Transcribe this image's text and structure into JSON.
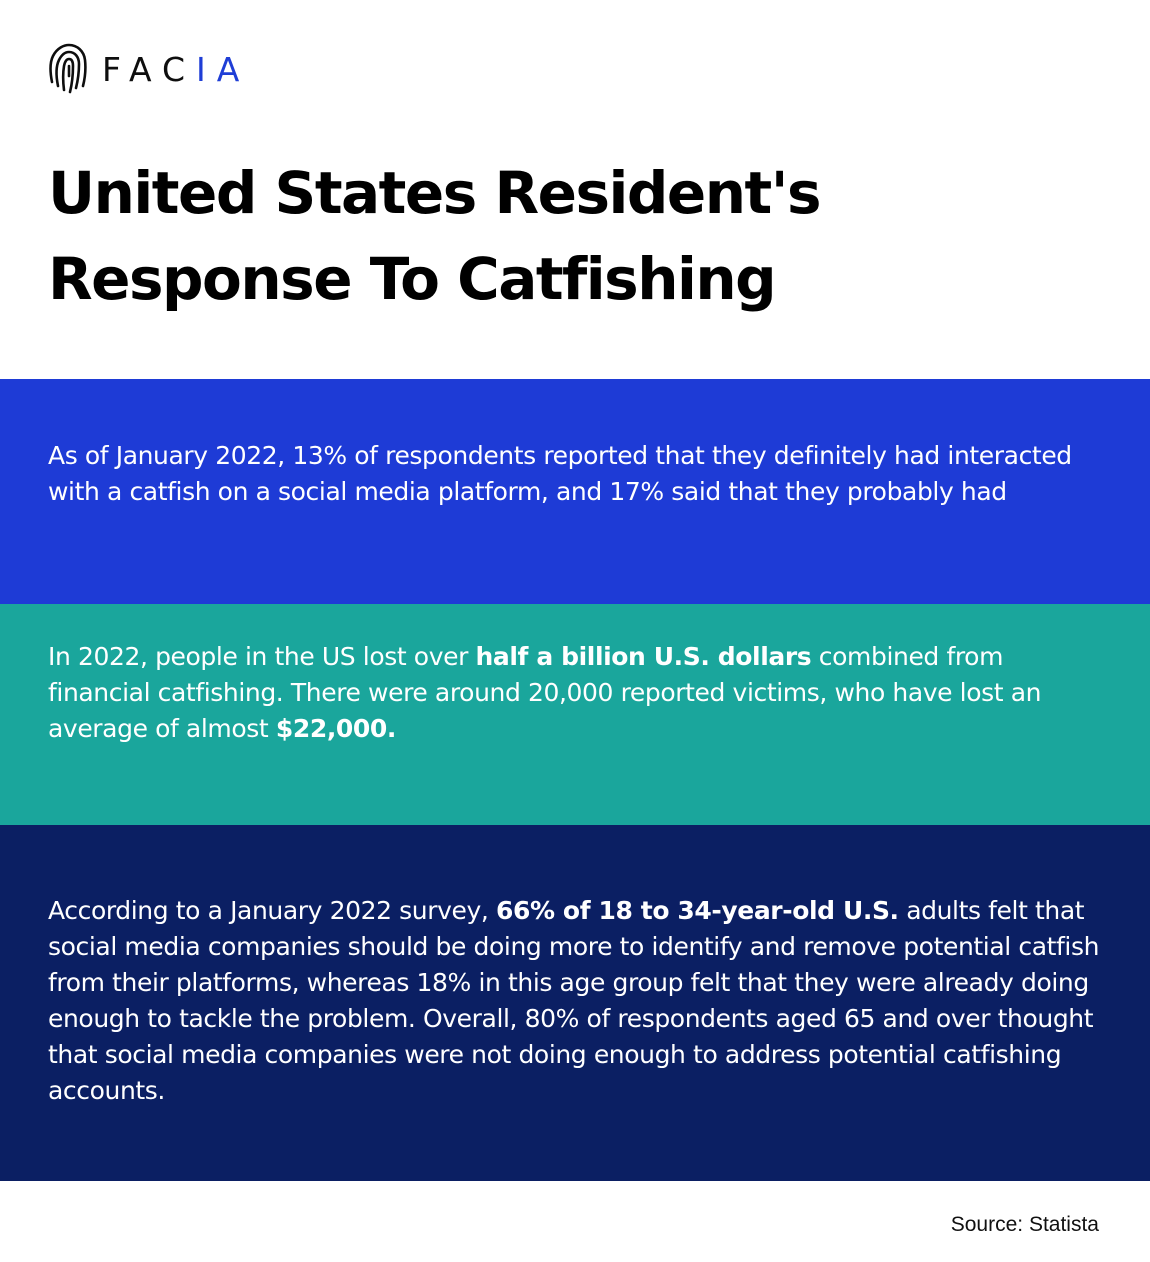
{
  "brand": {
    "logo_text_dark": "FAC",
    "logo_text_accent": "IA",
    "logo_icon": "fingerprint-icon",
    "accent_color": "#1f3ed6"
  },
  "title": {
    "line1": "United States Resident's",
    "line2": "Response To Catfishing"
  },
  "bands": [
    {
      "color": "#1e3bd6",
      "text": "As of January 2022, 13% of respondents reported that they definitely had interacted with a catfish on a social media platform, and 17% said that they probably had"
    },
    {
      "color": "#1aa69c",
      "text_a": "In 2022, people in the US lost over ",
      "bold_a": "half a billion U.S. dollars",
      "text_b": " combined from financial catfishing. There were around 20,000 reported victims, who have lost an average of almost ",
      "bold_b": "$22,000."
    },
    {
      "color": "#0b1f63",
      "text_a": "According to a January 2022 survey, ",
      "bold_a": "66% of 18 to 34-year-old U.S.",
      "text_b": " adults felt that social media companies should be doing more to identify and remove potential catfish from their platforms, whereas 18% in this age group felt that they were already doing enough to tackle the problem. Overall, 80% of respondents aged 65 and over thought that social media companies were not doing enough to address potential catfishing accounts."
    }
  ],
  "source": "Source: Statista"
}
